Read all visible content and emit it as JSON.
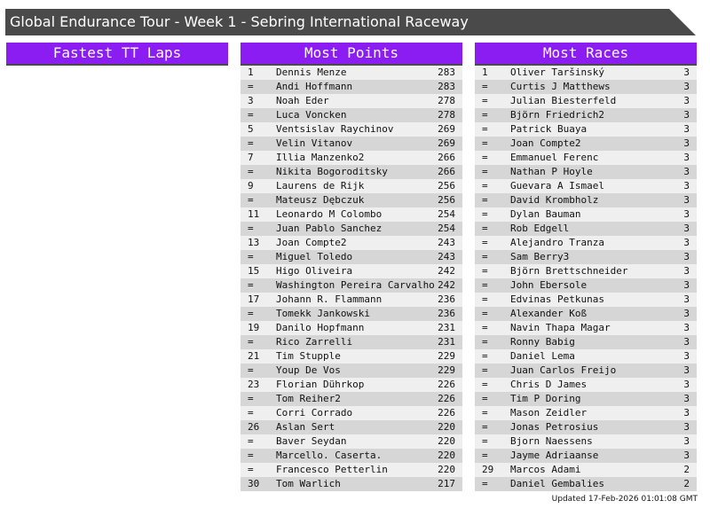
{
  "header": {
    "title": "Global Endurance Tour - Week 1 - Sebring International Raceway"
  },
  "panels": [
    {
      "title": "Fastest TT Laps",
      "rows": []
    },
    {
      "title": "Most Points",
      "rows": [
        [
          "1",
          "Dennis Menze",
          283
        ],
        [
          "=",
          "Andi Hoffmann",
          283
        ],
        [
          "3",
          "Noah Eder",
          278
        ],
        [
          "=",
          "Luca Voncken",
          278
        ],
        [
          "5",
          "Ventsislav Raychinov",
          269
        ],
        [
          "=",
          "Velin Vitanov",
          269
        ],
        [
          "7",
          "Illia Manzenko2",
          266
        ],
        [
          "=",
          "Nikita Bogoroditsky",
          266
        ],
        [
          "9",
          "Laurens de Rijk",
          256
        ],
        [
          "=",
          "Mateusz Dębczuk",
          256
        ],
        [
          "11",
          "Leonardo M Colombo",
          254
        ],
        [
          "=",
          "Juan Pablo Sanchez",
          254
        ],
        [
          "13",
          "Joan Compte2",
          243
        ],
        [
          "=",
          "Miguel Toledo",
          243
        ],
        [
          "15",
          "Higo Oliveira",
          242
        ],
        [
          "=",
          "Washington Pereira Carvalho",
          242
        ],
        [
          "17",
          "Johann R. Flammann",
          236
        ],
        [
          "=",
          "Tomekk Jankowski",
          236
        ],
        [
          "19",
          "Danilo Hopfmann",
          231
        ],
        [
          "=",
          "Rico Zarrelli",
          231
        ],
        [
          "21",
          "Tim Stupple",
          229
        ],
        [
          "=",
          "Youp De Vos",
          229
        ],
        [
          "23",
          "Florian Dührkop",
          226
        ],
        [
          "=",
          "Tom Reiher2",
          226
        ],
        [
          "=",
          "Corri Corrado",
          226
        ],
        [
          "26",
          "Aslan Sert",
          220
        ],
        [
          "=",
          "Baver Seydan",
          220
        ],
        [
          "=",
          "Marcello. Caserta.",
          220
        ],
        [
          "=",
          "Francesco Petterlin",
          220
        ],
        [
          "30",
          "Tom Warlich",
          217
        ]
      ]
    },
    {
      "title": "Most Races",
      "rows": [
        [
          "1",
          "Oliver Taršinský",
          3
        ],
        [
          "=",
          "Curtis J Matthews",
          3
        ],
        [
          "=",
          "Julian Biesterfeld",
          3
        ],
        [
          "=",
          "Björn Friedrich2",
          3
        ],
        [
          "=",
          "Patrick Buaya",
          3
        ],
        [
          "=",
          "Joan Compte2",
          3
        ],
        [
          "=",
          "Emmanuel Ferenc",
          3
        ],
        [
          "=",
          "Nathan P Hoyle",
          3
        ],
        [
          "=",
          "Guevara A Ismael",
          3
        ],
        [
          "=",
          "David Krombholz",
          3
        ],
        [
          "=",
          "Dylan Bauman",
          3
        ],
        [
          "=",
          "Rob Edgell",
          3
        ],
        [
          "=",
          "Alejandro Tranza",
          3
        ],
        [
          "=",
          "Sam Berry3",
          3
        ],
        [
          "=",
          "Björn Brettschneider",
          3
        ],
        [
          "=",
          "John Ebersole",
          3
        ],
        [
          "=",
          "Edvinas Petkunas",
          3
        ],
        [
          "=",
          "Alexander Koß",
          3
        ],
        [
          "=",
          "Navin Thapa Magar",
          3
        ],
        [
          "=",
          "Ronny Babig",
          3
        ],
        [
          "=",
          "Daniel Lema",
          3
        ],
        [
          "=",
          "Juan Carlos Freijo",
          3
        ],
        [
          "=",
          "Chris D James",
          3
        ],
        [
          "=",
          "Tim P Doring",
          3
        ],
        [
          "=",
          "Mason Zeidler",
          3
        ],
        [
          "=",
          "Jonas Petrosius",
          3
        ],
        [
          "=",
          "Bjorn Naessens",
          3
        ],
        [
          "=",
          "Jayme Adriaanse",
          3
        ],
        [
          "29",
          "Marcos Adami",
          2
        ],
        [
          "=",
          "Daniel Gembalies",
          2
        ]
      ]
    }
  ],
  "footer": {
    "updated": "Updated 17-Feb-2026 01:01:08 GMT"
  }
}
